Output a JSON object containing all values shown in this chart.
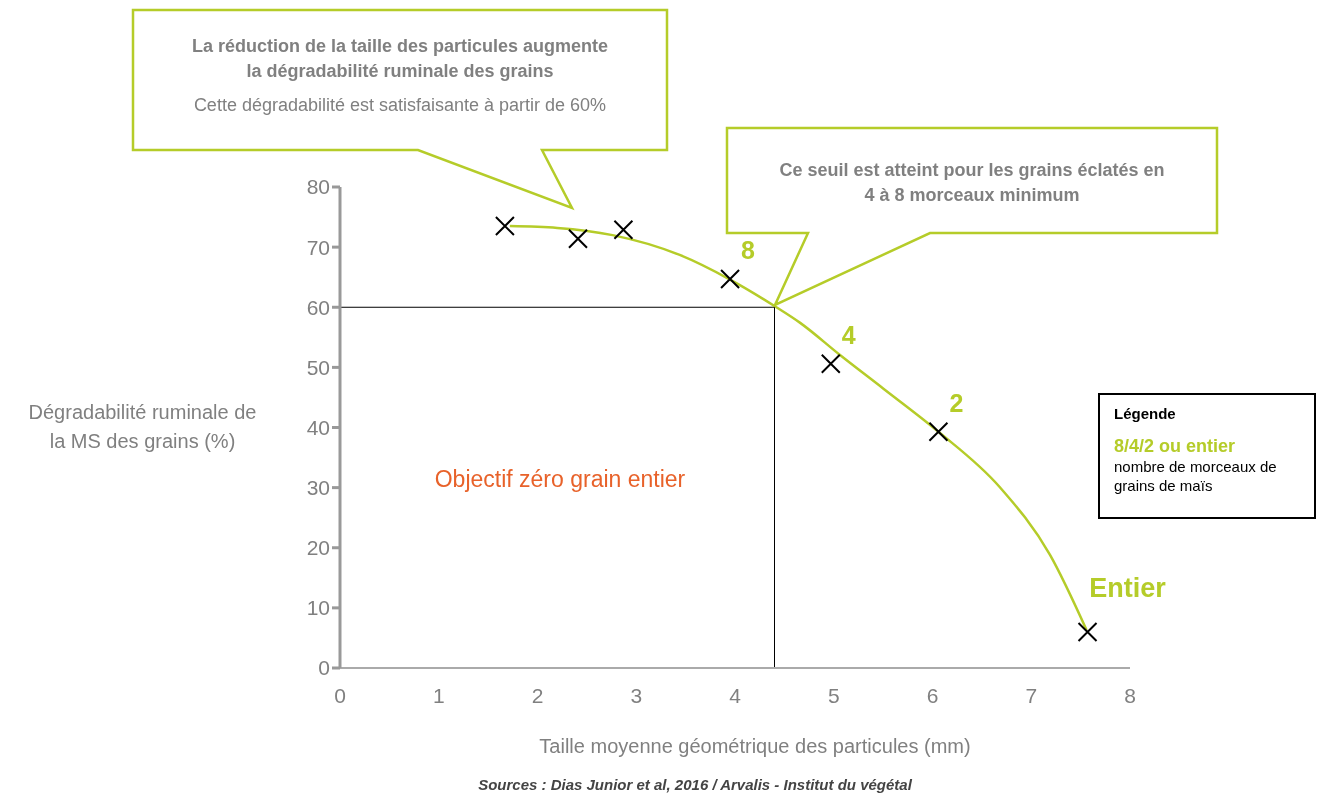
{
  "chart_data": {
    "type": "scatter",
    "xlabel": "Taille moyenne géométrique des particules (mm)",
    "ylabel": "Dégradabilité ruminale de la MS des grains (%)",
    "xlim": [
      0,
      8
    ],
    "xticks": [
      0,
      1,
      2,
      3,
      4,
      5,
      6,
      7,
      8
    ],
    "ylim": [
      0,
      80
    ],
    "yticks": [
      0,
      10,
      20,
      30,
      40,
      50,
      60,
      70,
      80
    ],
    "grid": false,
    "legend": false,
    "marker": "cross",
    "series": [
      {
        "color": "#000000",
        "x": [
          1.67,
          2.41,
          2.87,
          3.95,
          4.97,
          6.06,
          7.57
        ],
        "values": [
          73.5,
          71.4,
          72.9,
          64.7,
          50.6,
          39.3,
          6
        ]
      },
      {
        "type": "line",
        "color": "#b5cc29",
        "marker": "none",
        "x": [
          1.72,
          2.2,
          2.76,
          3.44,
          3.95,
          4.4,
          4.66,
          5.06,
          5.5,
          6.06,
          6.68,
          7.19,
          7.56
        ],
        "values": [
          73.5,
          73.2,
          72,
          68.7,
          64.6,
          60.2,
          57.4,
          52.1,
          46.5,
          39.3,
          30.1,
          18.8,
          6.3
        ]
      },
      {
        "type": "line",
        "color": "#000000",
        "marker": "none",
        "x": [
          0,
          4.4,
          4.4
        ],
        "values": [
          60,
          60,
          0
        ]
      }
    ],
    "annotations": [
      "La réduction de la taille des particules augmente la dégradabilité ruminale des grains",
      "Cette dégradabilité est satisfaisante à partir de 60%",
      "Ce seuil est atteint pour les grains éclatés en 4 à 8 morceaux minimum",
      "Objectif zéro grain entier",
      "Légende",
      "8/4/2 ou entier",
      "nombre de morceaux de grains de maïs",
      "Sources : Dias Junior et al, 2016 / Arvalis - Institut du végétal",
      {
        "text": "8",
        "x": 3.95,
        "y": 64.7
      },
      {
        "text": "4",
        "x": 4.97,
        "y": 50.6
      },
      {
        "text": "2",
        "x": 6.06,
        "y": 39.3
      },
      {
        "text": "Entier",
        "x": 7.57,
        "y": 6
      }
    ]
  }
}
